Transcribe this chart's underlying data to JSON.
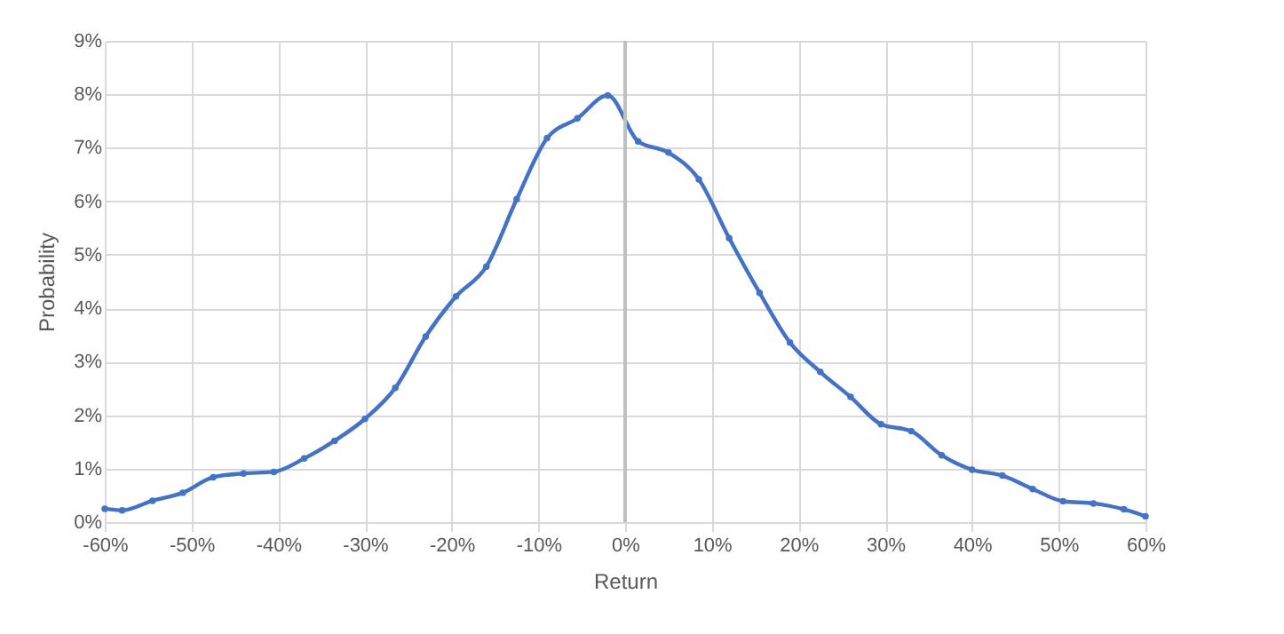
{
  "chart_data": {
    "type": "line",
    "xlabel": "Return",
    "ylabel": "Probability",
    "x": [
      -60,
      -58,
      -54.5,
      -51,
      -47.5,
      -44,
      -40.5,
      -37,
      -33.5,
      -30,
      -26.5,
      -23,
      -19.5,
      -16,
      -12.5,
      -9,
      -5.5,
      -2,
      1.5,
      5,
      8.5,
      12,
      15.5,
      19,
      22.5,
      26,
      29.5,
      33,
      36.5,
      40,
      43.5,
      47,
      50.5,
      54,
      57.5,
      60
    ],
    "series": [
      {
        "color": "#4472c4",
        "values": [
          0.25,
          0.22,
          0.4,
          0.55,
          0.84,
          0.91,
          0.94,
          1.19,
          1.52,
          1.93,
          2.51,
          3.47,
          4.22,
          4.78,
          6.04,
          7.18,
          7.55,
          7.98,
          7.12,
          6.91,
          6.41,
          5.31,
          4.29,
          3.36,
          2.81,
          2.34,
          1.83,
          1.7,
          1.25,
          0.98,
          0.87,
          0.62,
          0.39,
          0.35,
          0.24,
          0.11
        ]
      }
    ],
    "xlim": [
      -60,
      60
    ],
    "xticks": [
      {
        "value": -60,
        "label": "-60%"
      },
      {
        "value": -50,
        "label": "-50%"
      },
      {
        "value": -40,
        "label": "-40%"
      },
      {
        "value": -30,
        "label": "-30%"
      },
      {
        "value": -20,
        "label": "-20%"
      },
      {
        "value": -10,
        "label": "-10%"
      },
      {
        "value": 0,
        "label": "0%"
      },
      {
        "value": 10,
        "label": "10%"
      },
      {
        "value": 20,
        "label": "20%"
      },
      {
        "value": 30,
        "label": "30%"
      },
      {
        "value": 40,
        "label": "40%"
      },
      {
        "value": 50,
        "label": "50%"
      },
      {
        "value": 60,
        "label": "60%"
      }
    ],
    "ylim": [
      0,
      9
    ],
    "yticks": [
      {
        "value": 0,
        "label": "0%"
      },
      {
        "value": 1,
        "label": "1%"
      },
      {
        "value": 2,
        "label": "2%"
      },
      {
        "value": 3,
        "label": "3%"
      },
      {
        "value": 4,
        "label": "4%"
      },
      {
        "value": 5,
        "label": "5%"
      },
      {
        "value": 6,
        "label": "6%"
      },
      {
        "value": 7,
        "label": "7%"
      },
      {
        "value": 8,
        "label": "8%"
      },
      {
        "value": 9,
        "label": "9%"
      }
    ],
    "ref_lines": [
      {
        "axis": "x",
        "value": 0,
        "color": "#bfbfbf"
      }
    ],
    "grid": true,
    "marker": "circle",
    "line_style": "solid"
  }
}
